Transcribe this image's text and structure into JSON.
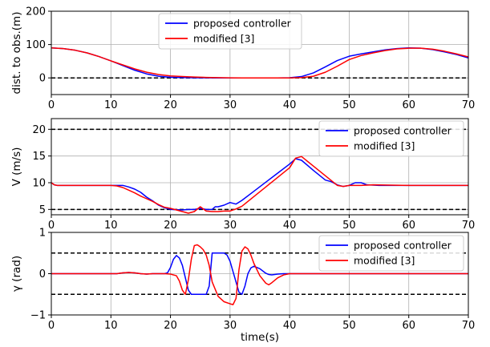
{
  "chart_data": [
    {
      "type": "line",
      "ylabel": "dist. to obs.(m)",
      "xlim": [
        0,
        70
      ],
      "ylim": [
        -50,
        200
      ],
      "xticks": [
        0,
        10,
        20,
        30,
        40,
        50,
        60,
        70
      ],
      "yticks": [
        0,
        100,
        200
      ],
      "grid": true,
      "legend": {
        "placement": "top-center"
      },
      "hlines": [
        0
      ],
      "series": [
        {
          "name": "proposed controller",
          "color": "#0000ff",
          "x": [
            0,
            2,
            4,
            6,
            8,
            10,
            12,
            14,
            16,
            18,
            20,
            22,
            24,
            26,
            28,
            30,
            32,
            34,
            36,
            38,
            40,
            42,
            44,
            46,
            48,
            50,
            52,
            54,
            56,
            58,
            60,
            62,
            64,
            66,
            68,
            70
          ],
          "y": [
            90,
            88,
            83,
            75,
            64,
            51,
            37,
            23,
            12,
            5,
            2,
            1,
            0.5,
            0.2,
            0,
            0,
            0,
            0,
            0,
            0,
            0.5,
            4,
            15,
            33,
            52,
            65,
            72,
            78,
            84,
            88,
            90,
            89,
            85,
            78,
            70,
            60
          ]
        },
        {
          "name": "modified [3]",
          "color": "#ff0000",
          "x": [
            0,
            2,
            4,
            6,
            8,
            10,
            12,
            14,
            16,
            18,
            20,
            22,
            24,
            26,
            28,
            30,
            32,
            34,
            36,
            38,
            40,
            42,
            44,
            46,
            48,
            50,
            52,
            54,
            56,
            58,
            60,
            62,
            64,
            66,
            68,
            70
          ],
          "y": [
            90,
            88,
            83,
            75,
            64,
            51,
            39,
            27,
            17,
            10,
            6,
            4,
            2.5,
            1.5,
            0.8,
            0.3,
            0,
            0,
            0,
            0,
            0,
            1,
            5,
            17,
            35,
            55,
            67,
            75,
            82,
            87,
            89,
            89,
            86,
            80,
            72,
            63
          ]
        }
      ]
    },
    {
      "type": "line",
      "ylabel": "V (m/s)",
      "xlim": [
        0,
        70
      ],
      "ylim": [
        4,
        22
      ],
      "xticks": [
        0,
        10,
        20,
        30,
        40,
        50,
        60,
        70
      ],
      "yticks": [
        5,
        10,
        15,
        20
      ],
      "grid": true,
      "legend": {
        "placement": "top-right"
      },
      "hlines": [
        5,
        20
      ],
      "series": [
        {
          "name": "proposed controller",
          "color": "#0000ff",
          "x": [
            0,
            0.5,
            1,
            5,
            10,
            12,
            13,
            14,
            15,
            16,
            17,
            18,
            19,
            20,
            21,
            22,
            23,
            24,
            25,
            26,
            27,
            27.5,
            28,
            29,
            30,
            31,
            32,
            34,
            36,
            38,
            40,
            41,
            42,
            44,
            46,
            47,
            48,
            49,
            50,
            51,
            52,
            53,
            55,
            60,
            65,
            70
          ],
          "y": [
            10,
            9.6,
            9.5,
            9.5,
            9.5,
            9.5,
            9.2,
            8.8,
            8.2,
            7.3,
            6.6,
            5.8,
            5.3,
            5.0,
            4.95,
            4.9,
            5.0,
            5.0,
            5.2,
            5.0,
            5.0,
            5.5,
            5.5,
            5.8,
            6.3,
            6.0,
            6.7,
            8.4,
            10.1,
            11.8,
            13.5,
            14.5,
            14.2,
            12.3,
            10.5,
            10.2,
            9.6,
            9.3,
            9.5,
            10.0,
            10.0,
            9.6,
            9.5,
            9.5,
            9.5,
            9.5
          ]
        },
        {
          "name": "modified [3]",
          "color": "#ff0000",
          "x": [
            0,
            0.5,
            1,
            5,
            10,
            11,
            12,
            13,
            14,
            15,
            16,
            17,
            18,
            19,
            20,
            21,
            22,
            23,
            24,
            25,
            26,
            27,
            28,
            29,
            30,
            31,
            32,
            34,
            36,
            38,
            40,
            41,
            42,
            44,
            46,
            47,
            48,
            49,
            50,
            52,
            54,
            60,
            65,
            70
          ],
          "y": [
            10,
            9.6,
            9.5,
            9.5,
            9.5,
            9.4,
            9.1,
            8.6,
            8.1,
            7.5,
            7.0,
            6.5,
            5.9,
            5.4,
            5.2,
            4.9,
            4.6,
            4.3,
            4.6,
            5.5,
            4.7,
            4.6,
            4.6,
            4.7,
            4.7,
            5.1,
            5.6,
            7.4,
            9.2,
            11.0,
            12.8,
            14.6,
            14.9,
            13.1,
            11.3,
            10.4,
            9.5,
            9.3,
            9.5,
            9.5,
            9.6,
            9.5,
            9.5,
            9.5
          ]
        }
      ]
    },
    {
      "type": "line",
      "ylabel": "γ (rad)",
      "xlabel": "time(s)",
      "xlim": [
        0,
        70
      ],
      "ylim": [
        -1,
        1
      ],
      "xticks": [
        0,
        10,
        20,
        30,
        40,
        50,
        60,
        70
      ],
      "yticks": [
        -1,
        0,
        1
      ],
      "grid": true,
      "legend": {
        "placement": "top-right"
      },
      "hlines": [
        0.5,
        -0.5
      ],
      "series": [
        {
          "name": "proposed controller",
          "color": "#0000ff",
          "x": [
            0,
            10,
            11,
            12,
            13,
            14,
            15,
            16,
            17,
            18,
            19,
            19.5,
            20,
            20.5,
            21,
            21.5,
            22,
            22.5,
            23,
            23.5,
            24,
            25,
            26,
            26.5,
            27,
            28,
            28.5,
            29,
            29.5,
            30,
            31,
            31.5,
            32,
            32.5,
            33,
            33.5,
            34,
            35,
            36,
            36.5,
            37,
            38,
            39,
            40,
            50,
            60,
            70
          ],
          "y": [
            0,
            0,
            0,
            0.02,
            0.03,
            0.02,
            0,
            -0.01,
            0,
            0,
            0,
            0.02,
            0.15,
            0.35,
            0.44,
            0.38,
            0.2,
            -0.1,
            -0.4,
            -0.5,
            -0.5,
            -0.5,
            -0.5,
            -0.3,
            0.5,
            0.5,
            0.5,
            0.5,
            0.45,
            0.3,
            -0.2,
            -0.45,
            -0.5,
            -0.3,
            0,
            0.14,
            0.18,
            0.12,
            0.01,
            -0.02,
            -0.03,
            -0.01,
            0,
            0,
            0,
            0,
            0
          ]
        },
        {
          "name": "modified [3]",
          "color": "#ff0000",
          "x": [
            0,
            10,
            11,
            12,
            13,
            14,
            15,
            16,
            17,
            18,
            19,
            20,
            21,
            21.5,
            22,
            22.5,
            23,
            23.5,
            24,
            24.5,
            25,
            25.5,
            26,
            26.5,
            27,
            28,
            29,
            30,
            30.5,
            31,
            31.5,
            32,
            32.5,
            33,
            33.5,
            34,
            35,
            36,
            36.5,
            37,
            38,
            39,
            40,
            50,
            60,
            70
          ],
          "y": [
            0,
            0,
            0,
            0.02,
            0.03,
            0.02,
            0,
            -0.01,
            0,
            0,
            0,
            -0.01,
            -0.05,
            -0.18,
            -0.4,
            -0.5,
            -0.15,
            0.35,
            0.68,
            0.7,
            0.65,
            0.58,
            0.45,
            0.2,
            -0.2,
            -0.55,
            -0.68,
            -0.73,
            -0.75,
            -0.6,
            0.1,
            0.55,
            0.65,
            0.6,
            0.45,
            0.25,
            -0.05,
            -0.23,
            -0.27,
            -0.22,
            -0.1,
            -0.03,
            0,
            0,
            0,
            0
          ]
        }
      ]
    }
  ]
}
